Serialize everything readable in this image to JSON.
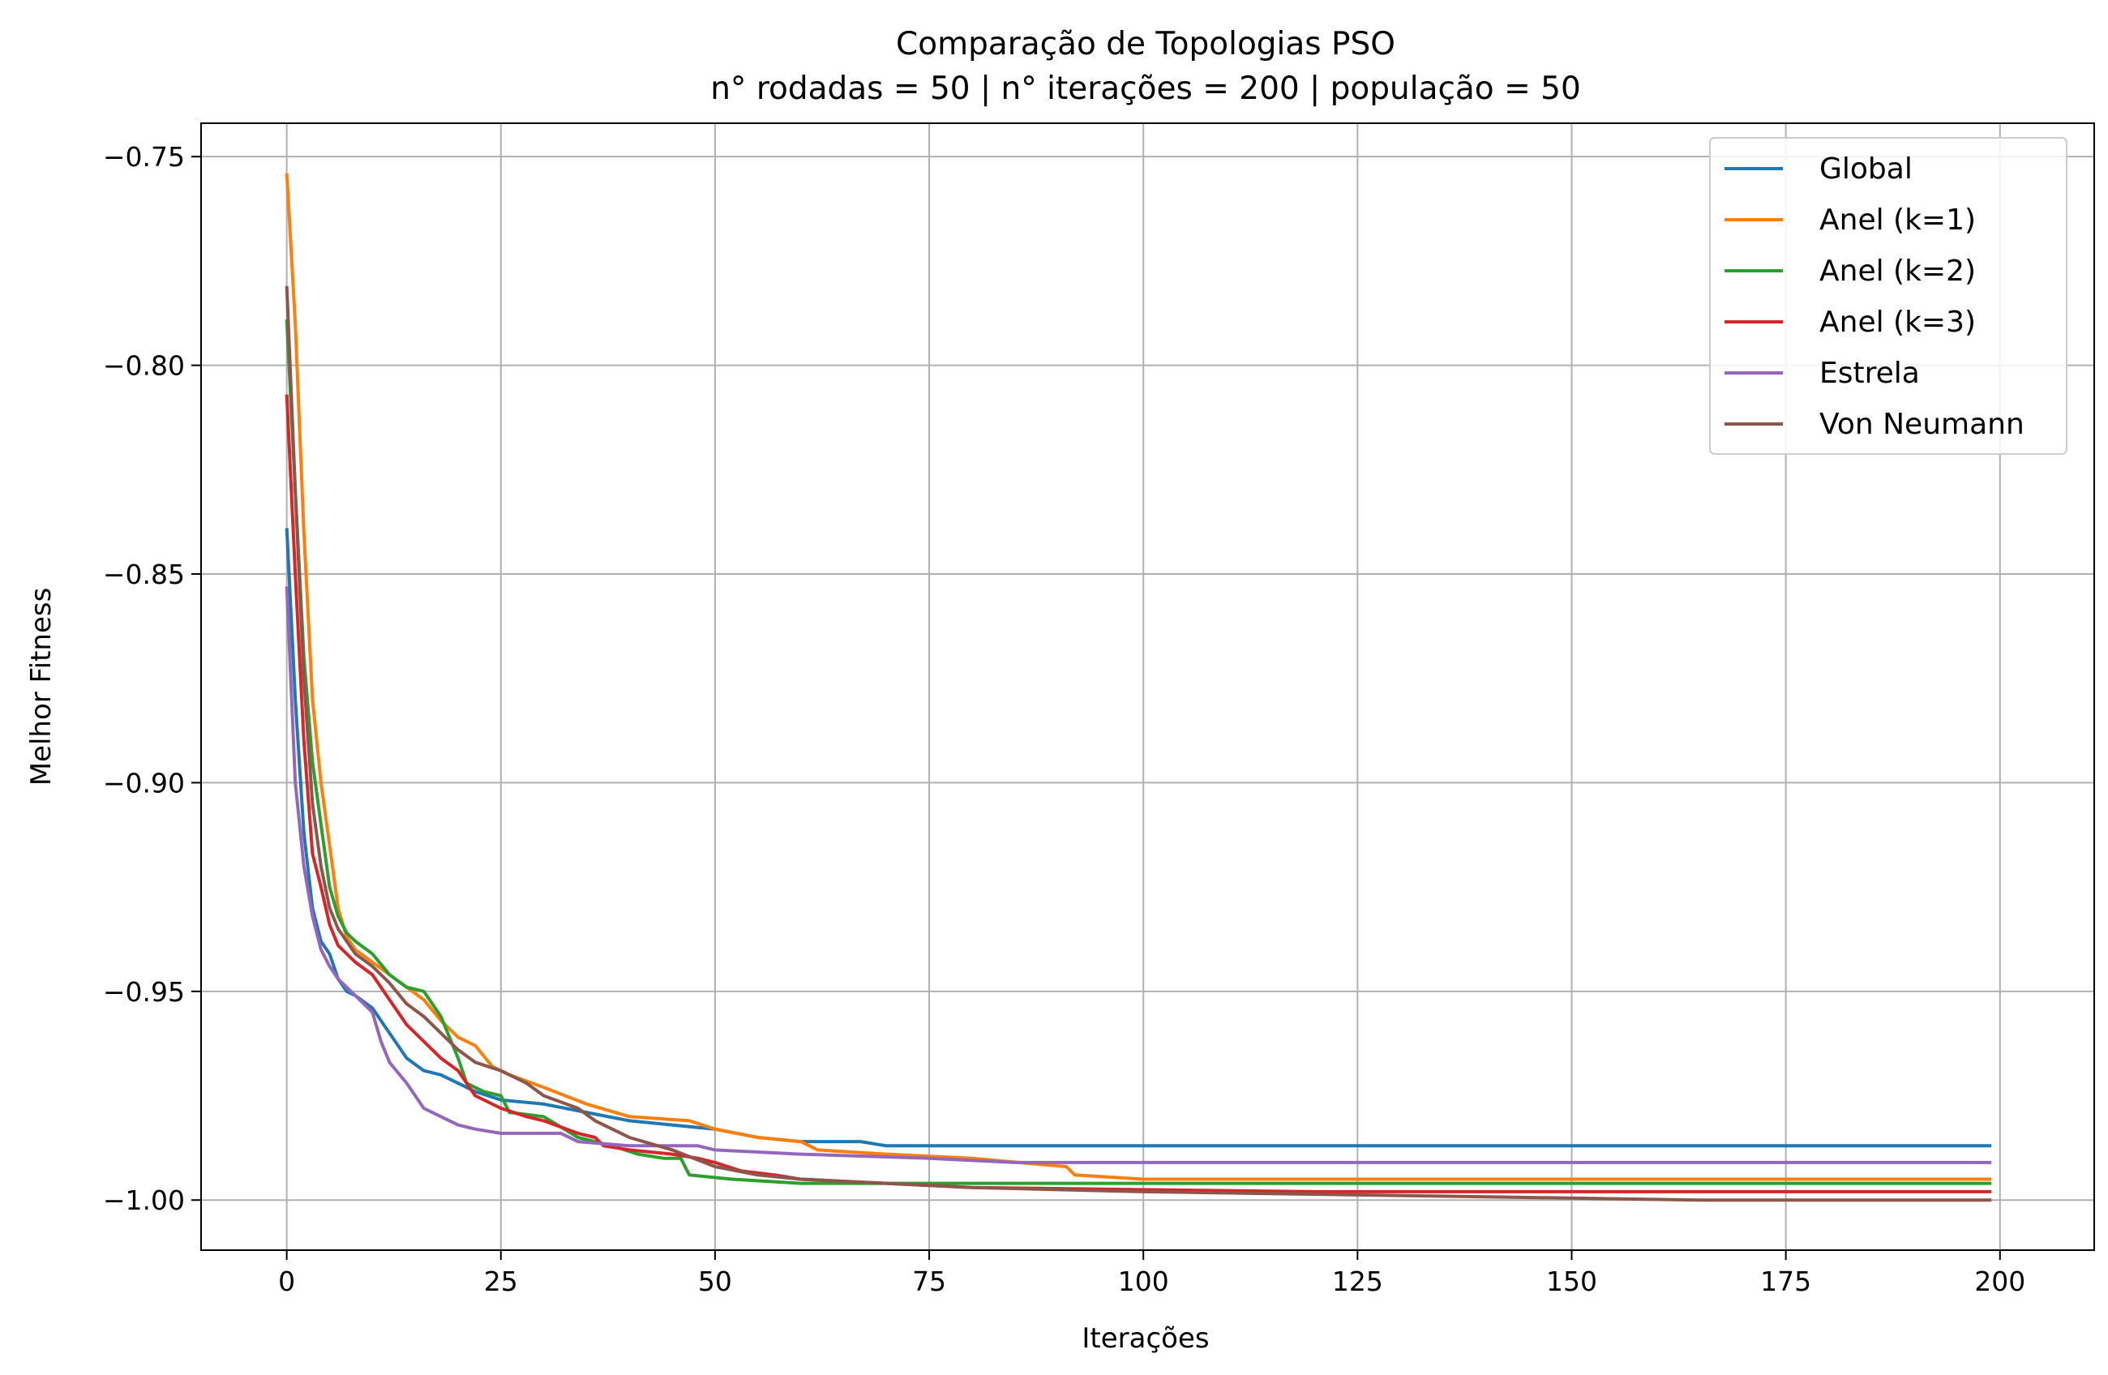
{
  "chart_data": {
    "type": "line",
    "title": "Comparação de Topologias PSO",
    "subtitle": "n° rodadas = 50 | n° iterações = 200 | população = 50",
    "xlabel": "Iterações",
    "ylabel": "Melhor Fitness",
    "xlim": [
      -10,
      211
    ],
    "ylim": [
      -1.012,
      -0.742
    ],
    "x_ticks": [
      0,
      25,
      50,
      75,
      100,
      125,
      150,
      175,
      200
    ],
    "x_tick_labels": [
      "0",
      "25",
      "50",
      "75",
      "100",
      "125",
      "150",
      "175",
      "200"
    ],
    "y_ticks": [
      -0.75,
      -0.8,
      -0.85,
      -0.9,
      -0.95,
      -1.0
    ],
    "y_tick_labels": [
      "−0.75",
      "−0.80",
      "−0.85",
      "−0.90",
      "−0.95",
      "−1.00"
    ],
    "grid": true,
    "legend_position": "top-right",
    "series": [
      {
        "name": "Global",
        "color": "#1f77b4",
        "points": [
          [
            0,
            -0.839
          ],
          [
            1,
            -0.88
          ],
          [
            2,
            -0.912
          ],
          [
            3,
            -0.93
          ],
          [
            4,
            -0.938
          ],
          [
            5,
            -0.941
          ],
          [
            6,
            -0.947
          ],
          [
            7,
            -0.95
          ],
          [
            8,
            -0.951
          ],
          [
            10,
            -0.954
          ],
          [
            12,
            -0.96
          ],
          [
            14,
            -0.966
          ],
          [
            16,
            -0.969
          ],
          [
            18,
            -0.97
          ],
          [
            20,
            -0.972
          ],
          [
            22,
            -0.974
          ],
          [
            25,
            -0.976
          ],
          [
            30,
            -0.977
          ],
          [
            35,
            -0.979
          ],
          [
            40,
            -0.981
          ],
          [
            45,
            -0.982
          ],
          [
            50,
            -0.983
          ],
          [
            55,
            -0.985
          ],
          [
            60,
            -0.986
          ],
          [
            67,
            -0.986
          ],
          [
            70,
            -0.987
          ],
          [
            199,
            -0.987
          ]
        ]
      },
      {
        "name": "Anel (k=1)",
        "color": "#ff7f0e",
        "points": [
          [
            0,
            -0.754
          ],
          [
            1,
            -0.79
          ],
          [
            2,
            -0.84
          ],
          [
            3,
            -0.88
          ],
          [
            4,
            -0.9
          ],
          [
            5,
            -0.915
          ],
          [
            6,
            -0.93
          ],
          [
            7,
            -0.937
          ],
          [
            8,
            -0.94
          ],
          [
            10,
            -0.943
          ],
          [
            12,
            -0.946
          ],
          [
            14,
            -0.949
          ],
          [
            16,
            -0.952
          ],
          [
            18,
            -0.957
          ],
          [
            20,
            -0.961
          ],
          [
            22,
            -0.963
          ],
          [
            24,
            -0.968
          ],
          [
            26,
            -0.97
          ],
          [
            30,
            -0.973
          ],
          [
            35,
            -0.977
          ],
          [
            40,
            -0.98
          ],
          [
            47,
            -0.981
          ],
          [
            50,
            -0.983
          ],
          [
            55,
            -0.985
          ],
          [
            60,
            -0.986
          ],
          [
            62,
            -0.988
          ],
          [
            70,
            -0.989
          ],
          [
            80,
            -0.99
          ],
          [
            91,
            -0.992
          ],
          [
            92,
            -0.994
          ],
          [
            100,
            -0.995
          ],
          [
            199,
            -0.995
          ]
        ]
      },
      {
        "name": "Anel (k=2)",
        "color": "#2ca02c",
        "points": [
          [
            0,
            -0.789
          ],
          [
            1,
            -0.83
          ],
          [
            2,
            -0.87
          ],
          [
            3,
            -0.895
          ],
          [
            4,
            -0.91
          ],
          [
            5,
            -0.925
          ],
          [
            6,
            -0.932
          ],
          [
            7,
            -0.936
          ],
          [
            8,
            -0.938
          ],
          [
            10,
            -0.941
          ],
          [
            12,
            -0.946
          ],
          [
            14,
            -0.949
          ],
          [
            16,
            -0.95
          ],
          [
            18,
            -0.956
          ],
          [
            20,
            -0.966
          ],
          [
            21,
            -0.972
          ],
          [
            23,
            -0.974
          ],
          [
            25,
            -0.975
          ],
          [
            26,
            -0.979
          ],
          [
            30,
            -0.98
          ],
          [
            34,
            -0.985
          ],
          [
            38,
            -0.987
          ],
          [
            41,
            -0.989
          ],
          [
            44,
            -0.99
          ],
          [
            46,
            -0.99
          ],
          [
            47,
            -0.994
          ],
          [
            52,
            -0.995
          ],
          [
            60,
            -0.996
          ],
          [
            199,
            -0.996
          ]
        ]
      },
      {
        "name": "Anel (k=3)",
        "color": "#d62728",
        "points": [
          [
            0,
            -0.807
          ],
          [
            1,
            -0.85
          ],
          [
            2,
            -0.89
          ],
          [
            3,
            -0.917
          ],
          [
            4,
            -0.925
          ],
          [
            5,
            -0.934
          ],
          [
            6,
            -0.939
          ],
          [
            7,
            -0.941
          ],
          [
            8,
            -0.943
          ],
          [
            10,
            -0.946
          ],
          [
            12,
            -0.952
          ],
          [
            14,
            -0.958
          ],
          [
            16,
            -0.962
          ],
          [
            18,
            -0.966
          ],
          [
            20,
            -0.969
          ],
          [
            22,
            -0.975
          ],
          [
            25,
            -0.978
          ],
          [
            28,
            -0.98
          ],
          [
            30,
            -0.981
          ],
          [
            34,
            -0.984
          ],
          [
            36,
            -0.985
          ],
          [
            37,
            -0.987
          ],
          [
            40,
            -0.988
          ],
          [
            45,
            -0.989
          ],
          [
            48,
            -0.99
          ],
          [
            50,
            -0.991
          ],
          [
            53,
            -0.993
          ],
          [
            57,
            -0.994
          ],
          [
            60,
            -0.995
          ],
          [
            70,
            -0.996
          ],
          [
            80,
            -0.997
          ],
          [
            120,
            -0.998
          ],
          [
            199,
            -0.998
          ]
        ]
      },
      {
        "name": "Estrela",
        "color": "#9467bd",
        "points": [
          [
            0,
            -0.853
          ],
          [
            1,
            -0.9
          ],
          [
            2,
            -0.92
          ],
          [
            3,
            -0.932
          ],
          [
            4,
            -0.94
          ],
          [
            5,
            -0.944
          ],
          [
            6,
            -0.947
          ],
          [
            7,
            -0.949
          ],
          [
            8,
            -0.951
          ],
          [
            10,
            -0.955
          ],
          [
            11,
            -0.962
          ],
          [
            12,
            -0.967
          ],
          [
            14,
            -0.972
          ],
          [
            16,
            -0.978
          ],
          [
            18,
            -0.98
          ],
          [
            20,
            -0.982
          ],
          [
            22,
            -0.983
          ],
          [
            25,
            -0.984
          ],
          [
            32,
            -0.984
          ],
          [
            34,
            -0.986
          ],
          [
            40,
            -0.987
          ],
          [
            48,
            -0.987
          ],
          [
            50,
            -0.988
          ],
          [
            60,
            -0.989
          ],
          [
            75,
            -0.99
          ],
          [
            85,
            -0.991
          ],
          [
            199,
            -0.991
          ]
        ]
      },
      {
        "name": "Von Neumann",
        "color": "#8c564b",
        "points": [
          [
            0,
            -0.781
          ],
          [
            1,
            -0.83
          ],
          [
            2,
            -0.875
          ],
          [
            3,
            -0.905
          ],
          [
            4,
            -0.92
          ],
          [
            5,
            -0.93
          ],
          [
            6,
            -0.935
          ],
          [
            7,
            -0.938
          ],
          [
            8,
            -0.941
          ],
          [
            10,
            -0.944
          ],
          [
            12,
            -0.948
          ],
          [
            14,
            -0.953
          ],
          [
            16,
            -0.956
          ],
          [
            18,
            -0.96
          ],
          [
            20,
            -0.964
          ],
          [
            22,
            -0.967
          ],
          [
            25,
            -0.969
          ],
          [
            28,
            -0.972
          ],
          [
            30,
            -0.975
          ],
          [
            34,
            -0.978
          ],
          [
            36,
            -0.981
          ],
          [
            40,
            -0.985
          ],
          [
            45,
            -0.988
          ],
          [
            50,
            -0.992
          ],
          [
            55,
            -0.994
          ],
          [
            60,
            -0.995
          ],
          [
            70,
            -0.996
          ],
          [
            80,
            -0.997
          ],
          [
            100,
            -0.998
          ],
          [
            133,
            -0.999
          ],
          [
            165,
            -1.0
          ],
          [
            199,
            -1.0
          ]
        ]
      }
    ]
  }
}
